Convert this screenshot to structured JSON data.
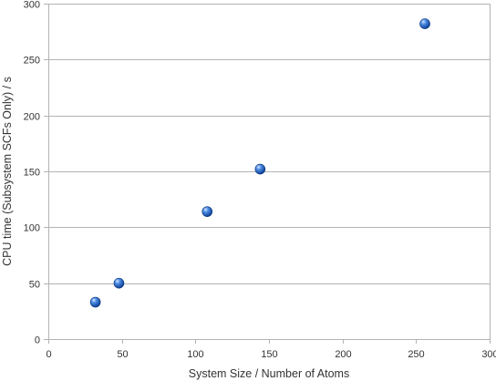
{
  "chart_data": {
    "type": "scatter",
    "xlabel": "System Size / Number of Atoms",
    "ylabel": "CPU time (Subsystem SCFs Only) / s",
    "xlim": [
      0,
      300
    ],
    "ylim": [
      0,
      300
    ],
    "xticks": [
      0,
      50,
      100,
      150,
      200,
      250,
      300
    ],
    "yticks": [
      0,
      50,
      100,
      150,
      200,
      250,
      300
    ],
    "grid": "horizontal",
    "legend": "none",
    "marker_color": "#1f5fbf",
    "series": [
      {
        "points": [
          {
            "x": 32,
            "y": 33
          },
          {
            "x": 48,
            "y": 50
          },
          {
            "x": 108,
            "y": 114
          },
          {
            "x": 144,
            "y": 152
          },
          {
            "x": 256,
            "y": 282
          }
        ]
      }
    ]
  }
}
